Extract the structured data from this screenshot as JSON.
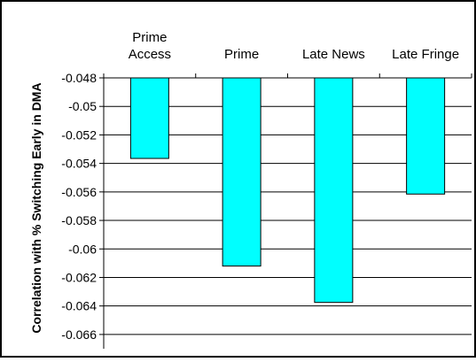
{
  "chart_data": {
    "type": "bar",
    "title": "",
    "xlabel": "",
    "ylabel": "Correlation with % Switching Early in DMA",
    "categories": [
      [
        "Prime",
        "Access"
      ],
      [
        "Prime"
      ],
      [
        "Late News"
      ],
      [
        "Late Fringe"
      ]
    ],
    "values": [
      -0.05365,
      -0.0612,
      -0.06375,
      -0.05615
    ],
    "ylim": [
      -0.067,
      -0.048
    ],
    "yticks": [
      -0.048,
      -0.05,
      -0.052,
      -0.054,
      -0.056,
      -0.058,
      -0.06,
      -0.062,
      -0.064,
      -0.066
    ],
    "ytick_labels": [
      "-0.048",
      "-0.05",
      "-0.052",
      "-0.054",
      "-0.056",
      "-0.058",
      "-0.06",
      "-0.062",
      "-0.064",
      "-0.066"
    ],
    "grid": true,
    "bar_color": "#00FFFF",
    "legend": "none"
  }
}
